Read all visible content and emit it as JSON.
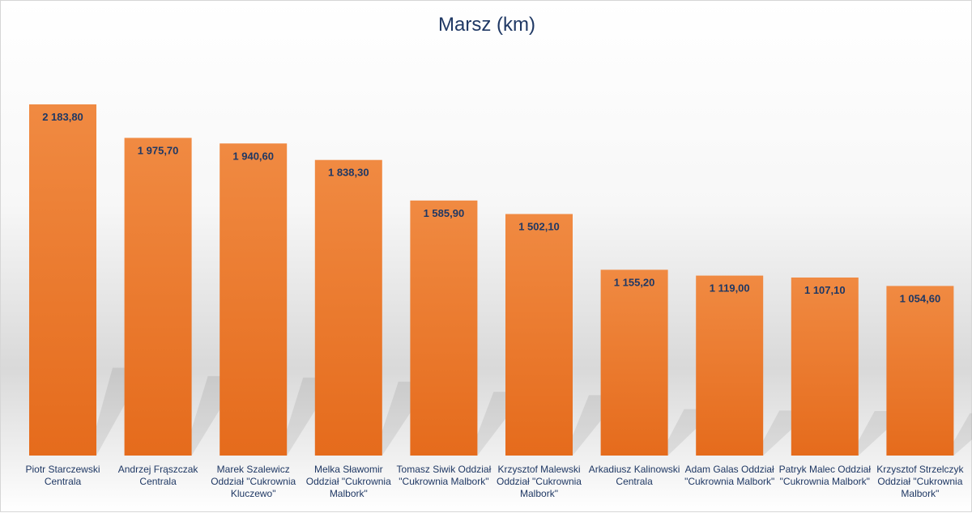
{
  "chart_data": {
    "type": "bar",
    "title": "Marsz (km)",
    "categories": [
      "Piotr Starczewski Centrala",
      "Andrzej Frąszczak Centrala",
      "Marek Szalewicz Oddział \"Cukrownia Kluczewo\"",
      "Melka Sławomir Oddział \"Cukrownia Malbork\"",
      "Tomasz Siwik Oddział \"Cukrownia Malbork\"",
      "Krzysztof Malewski Oddział \"Cukrownia Malbork\"",
      "Arkadiusz Kalinowski Centrala",
      "Adam Galas Oddział \"Cukrownia Malbork\"",
      "Patryk Malec Oddział \"Cukrownia Malbork\"",
      "Krzysztof Strzelczyk Oddział \"Cukrownia Malbork\""
    ],
    "values": [
      2183.8,
      1975.7,
      1940.6,
      1838.3,
      1585.9,
      1502.1,
      1155.2,
      1119.0,
      1107.1,
      1054.6
    ],
    "data_labels": [
      "2 183,80",
      "1 975,70",
      "1 940,60",
      "1 838,30",
      "1 585,90",
      "1 502,10",
      "1 155,20",
      "1 119,00",
      "1 107,10",
      "1 054,60"
    ],
    "xlabel": "",
    "ylabel": "",
    "ylim": [
      0,
      2183.8
    ],
    "grid": false,
    "legend": "none",
    "colors": {
      "bar_top": "#f08a42",
      "bar_bottom": "#e56b1c",
      "title": "#1f3864",
      "label": "#1f3864"
    }
  }
}
